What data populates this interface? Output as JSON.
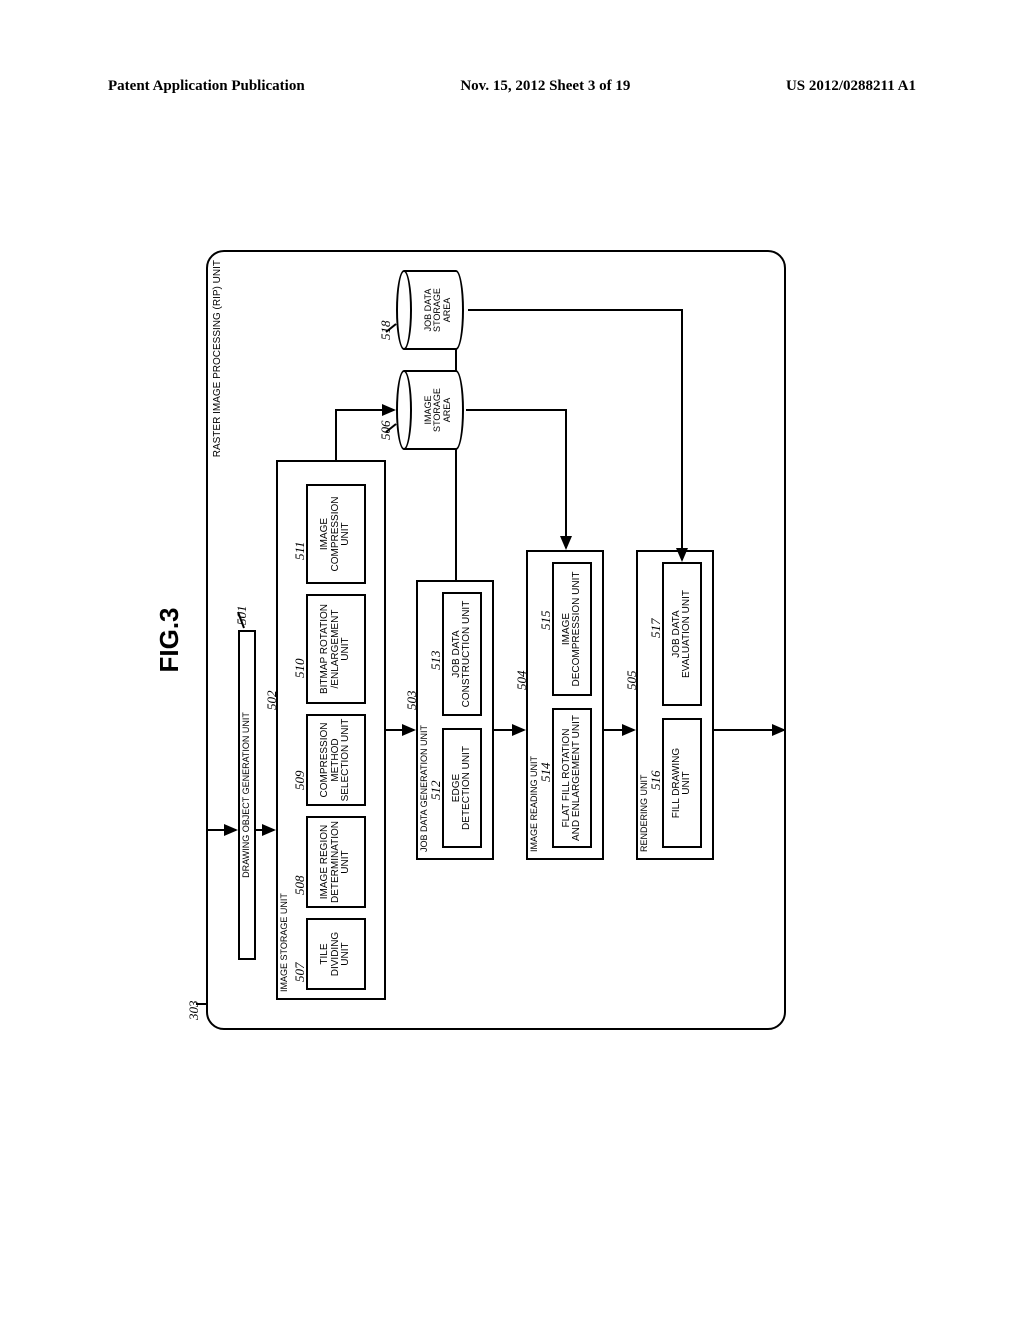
{
  "header": {
    "left": "Patent Application Publication",
    "center": "Nov. 15, 2012  Sheet 3 of 19",
    "right": "US 2012/0288211 A1"
  },
  "figure_label": "FIG.3",
  "callouts": {
    "c303": "303",
    "c501": "501",
    "c502": "502",
    "c503": "503",
    "c504": "504",
    "c505": "505",
    "c506": "506",
    "c507": "507",
    "c508": "508",
    "c509": "509",
    "c510": "510",
    "c511": "511",
    "c512": "512",
    "c513": "513",
    "c514": "514",
    "c515": "515",
    "c516": "516",
    "c517": "517",
    "c518": "518"
  },
  "labels": {
    "outer": "RASTER IMAGE PROCESSING (RIP) UNIT",
    "drawing_object": "DRAWING OBJECT GENERATION UNIT",
    "image_storage_unit": "IMAGE STORAGE UNIT",
    "tile_dividing": "TILE\nDIVIDING\nUNIT",
    "image_region": "IMAGE REGION\nDETERMINATION\nUNIT",
    "compression_method": "COMPRESSION\nMETHOD\nSELECTION UNIT",
    "bitmap_rotation": "BITMAP ROTATION\n/ENLARGEMENT\nUNIT",
    "image_compression": "IMAGE\nCOMPRESSION\nUNIT",
    "job_data_gen": "JOB DATA GENERATION UNIT",
    "edge_detection": "EDGE\nDETECTION UNIT",
    "job_data_construction": "JOB DATA\nCONSTRUCTION UNIT",
    "image_reading": "IMAGE READING UNIT",
    "flat_fill": "FLAT FILL ROTATION\nAND ENLARGEMENT UNIT",
    "image_decompression": "IMAGE\nDECOMPRESSION UNIT",
    "rendering": "RENDERING UNIT",
    "fill_drawing": "FILL DRAWING\nUNIT",
    "job_data_eval": "JOB DATA\nEVALUATION UNIT",
    "image_storage_area": "IMAGE\nSTORAGE\nAREA",
    "job_data_storage": "JOB DATA\nSTORAGE\nAREA"
  }
}
